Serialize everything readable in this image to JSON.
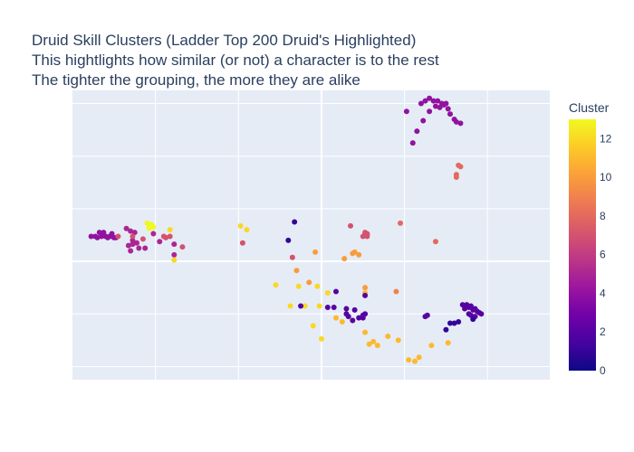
{
  "chart_data": {
    "type": "scatter",
    "title_lines": [
      "Druid Skill Clusters (Ladder Top 200 Druid's Highlighted)",
      "This hightlights how similar (or not) a character is to the rest",
      "The tighter the grouping, the more they are alike"
    ],
    "xlabel": "",
    "ylabel": "",
    "xlim": [
      -6,
      5.5
    ],
    "ylim": [
      -4.5,
      6.5
    ],
    "x_gridlines": [
      -4,
      -2,
      0,
      2,
      4
    ],
    "y_gridlines": [
      -4,
      -2,
      0,
      2,
      4,
      6
    ],
    "show_tick_labels": false,
    "colorbar": {
      "title": "Cluster",
      "range": [
        0,
        13
      ],
      "ticks": [
        0,
        2,
        4,
        6,
        8,
        10,
        12
      ],
      "colorscale": [
        "#0d0887",
        "#46039f",
        "#7201a8",
        "#9c179e",
        "#bd3786",
        "#d8576b",
        "#ed7953",
        "#fb9f3a",
        "#fdca26",
        "#f0f921"
      ]
    },
    "points": [
      {
        "x": 2.6,
        "y": 6.2,
        "c": 4
      },
      {
        "x": 2.5,
        "y": 6.1,
        "c": 4
      },
      {
        "x": 2.7,
        "y": 6.1,
        "c": 4
      },
      {
        "x": 2.8,
        "y": 6.1,
        "c": 4
      },
      {
        "x": 2.4,
        "y": 6.0,
        "c": 4
      },
      {
        "x": 2.9,
        "y": 6.0,
        "c": 4
      },
      {
        "x": 3.0,
        "y": 6.0,
        "c": 4
      },
      {
        "x": 2.75,
        "y": 5.9,
        "c": 4
      },
      {
        "x": 2.85,
        "y": 5.85,
        "c": 4
      },
      {
        "x": 3.05,
        "y": 5.8,
        "c": 4
      },
      {
        "x": 2.6,
        "y": 5.7,
        "c": 4
      },
      {
        "x": 3.1,
        "y": 5.6,
        "c": 4
      },
      {
        "x": 3.2,
        "y": 5.4,
        "c": 4
      },
      {
        "x": 3.25,
        "y": 5.3,
        "c": 4
      },
      {
        "x": 3.35,
        "y": 5.25,
        "c": 4
      },
      {
        "x": 2.45,
        "y": 5.35,
        "c": 4
      },
      {
        "x": 2.05,
        "y": 5.7,
        "c": 4
      },
      {
        "x": 2.3,
        "y": 4.95,
        "c": 4
      },
      {
        "x": 2.2,
        "y": 4.5,
        "c": 4
      },
      {
        "x": 2.95,
        "y": 5.95,
        "c": 4
      },
      {
        "x": 3.3,
        "y": 3.65,
        "c": 8
      },
      {
        "x": 3.35,
        "y": 3.6,
        "c": 8
      },
      {
        "x": 3.25,
        "y": 3.3,
        "c": 8
      },
      {
        "x": 3.25,
        "y": 3.2,
        "c": 8
      },
      {
        "x": -5.55,
        "y": 0.95,
        "c": 4
      },
      {
        "x": -5.45,
        "y": 0.95,
        "c": 4
      },
      {
        "x": -5.35,
        "y": 1.1,
        "c": 4
      },
      {
        "x": -5.3,
        "y": 0.95,
        "c": 4
      },
      {
        "x": -5.25,
        "y": 1.1,
        "c": 4
      },
      {
        "x": -5.2,
        "y": 0.95,
        "c": 4
      },
      {
        "x": -5.1,
        "y": 0.95,
        "c": 4
      },
      {
        "x": -5.05,
        "y": 1.05,
        "c": 4
      },
      {
        "x": -5.0,
        "y": 0.9,
        "c": 4
      },
      {
        "x": -5.15,
        "y": 0.9,
        "c": 4
      },
      {
        "x": -5.4,
        "y": 0.9,
        "c": 4
      },
      {
        "x": -4.95,
        "y": 0.9,
        "c": 4
      },
      {
        "x": -4.7,
        "y": 1.25,
        "c": 5
      },
      {
        "x": -4.6,
        "y": 1.15,
        "c": 5
      },
      {
        "x": -4.5,
        "y": 1.1,
        "c": 5
      },
      {
        "x": -4.55,
        "y": 0.8,
        "c": 5
      },
      {
        "x": -4.45,
        "y": 0.7,
        "c": 5
      },
      {
        "x": -4.65,
        "y": 0.6,
        "c": 5
      },
      {
        "x": -4.55,
        "y": 0.65,
        "c": 5
      },
      {
        "x": -4.4,
        "y": 0.5,
        "c": 5
      },
      {
        "x": -4.25,
        "y": 0.5,
        "c": 5
      },
      {
        "x": -4.6,
        "y": 0.4,
        "c": 5
      },
      {
        "x": -4.3,
        "y": 0.85,
        "c": 7
      },
      {
        "x": -4.9,
        "y": 0.95,
        "c": 7
      },
      {
        "x": -4.55,
        "y": 0.95,
        "c": 7
      },
      {
        "x": -4.05,
        "y": 1.05,
        "c": 5
      },
      {
        "x": -3.9,
        "y": 0.75,
        "c": 5
      },
      {
        "x": -3.75,
        "y": 0.9,
        "c": 7
      },
      {
        "x": -3.8,
        "y": 0.95,
        "c": 7
      },
      {
        "x": -3.65,
        "y": 0.95,
        "c": 7
      },
      {
        "x": -3.55,
        "y": 0.65,
        "c": 5
      },
      {
        "x": -3.55,
        "y": 0.25,
        "c": 5
      },
      {
        "x": -3.35,
        "y": 0.55,
        "c": 7
      },
      {
        "x": -4.2,
        "y": 1.45,
        "c": 13
      },
      {
        "x": -4.15,
        "y": 1.35,
        "c": 13
      },
      {
        "x": -4.1,
        "y": 1.4,
        "c": 13
      },
      {
        "x": -4.05,
        "y": 1.3,
        "c": 13
      },
      {
        "x": -4.15,
        "y": 1.25,
        "c": 13
      },
      {
        "x": -3.65,
        "y": 1.2,
        "c": 12
      },
      {
        "x": -3.55,
        "y": 0.05,
        "c": 12
      },
      {
        "x": -1.95,
        "y": 1.35,
        "c": 12
      },
      {
        "x": -1.8,
        "y": 1.2,
        "c": 12
      },
      {
        "x": -0.65,
        "y": 1.5,
        "c": 1
      },
      {
        "x": -0.8,
        "y": 0.8,
        "c": 1
      },
      {
        "x": -1.9,
        "y": 0.7,
        "c": 7
      },
      {
        "x": -0.7,
        "y": 0.15,
        "c": 7
      },
      {
        "x": 0.7,
        "y": 1.35,
        "c": 7
      },
      {
        "x": 1.05,
        "y": 1.1,
        "c": 7
      },
      {
        "x": 1.1,
        "y": 1.0,
        "c": 7
      },
      {
        "x": 1.1,
        "y": 1.05,
        "c": 7
      },
      {
        "x": 1.1,
        "y": 0.95,
        "c": 7
      },
      {
        "x": 1.0,
        "y": 0.95,
        "c": 7
      },
      {
        "x": 1.9,
        "y": 1.45,
        "c": 8
      },
      {
        "x": 2.75,
        "y": 0.75,
        "c": 8
      },
      {
        "x": 0.8,
        "y": 0.35,
        "c": 10
      },
      {
        "x": 0.75,
        "y": 0.3,
        "c": 10
      },
      {
        "x": 0.9,
        "y": 0.25,
        "c": 10
      },
      {
        "x": 0.55,
        "y": 0.1,
        "c": 10
      },
      {
        "x": -0.15,
        "y": 0.35,
        "c": 10
      },
      {
        "x": -0.6,
        "y": -0.35,
        "c": 10
      },
      {
        "x": -0.3,
        "y": -0.8,
        "c": 10
      },
      {
        "x": 1.05,
        "y": -1.0,
        "c": 10
      },
      {
        "x": 1.8,
        "y": -1.15,
        "c": 9
      },
      {
        "x": -1.1,
        "y": -0.9,
        "c": 12
      },
      {
        "x": -0.75,
        "y": -1.7,
        "c": 12
      },
      {
        "x": -0.4,
        "y": -1.7,
        "c": 12
      },
      {
        "x": -0.1,
        "y": -0.95,
        "c": 12
      },
      {
        "x": 0.15,
        "y": -1.2,
        "c": 12
      },
      {
        "x": -0.55,
        "y": -0.95,
        "c": 12
      },
      {
        "x": -0.2,
        "y": -2.45,
        "c": 12
      },
      {
        "x": 0.0,
        "y": -2.95,
        "c": 12
      },
      {
        "x": -0.05,
        "y": -1.7,
        "c": 12
      },
      {
        "x": 0.35,
        "y": -2.15,
        "c": 11
      },
      {
        "x": 0.5,
        "y": -2.3,
        "c": 11
      },
      {
        "x": 1.05,
        "y": -2.7,
        "c": 11
      },
      {
        "x": 1.15,
        "y": -3.15,
        "c": 11
      },
      {
        "x": 1.25,
        "y": -3.05,
        "c": 11
      },
      {
        "x": 1.35,
        "y": -3.2,
        "c": 11
      },
      {
        "x": 1.6,
        "y": -2.85,
        "c": 11
      },
      {
        "x": 1.85,
        "y": -3.0,
        "c": 11
      },
      {
        "x": 2.1,
        "y": -3.75,
        "c": 11
      },
      {
        "x": 2.25,
        "y": -3.8,
        "c": 11
      },
      {
        "x": 2.35,
        "y": -3.65,
        "c": 11
      },
      {
        "x": 2.65,
        "y": -3.2,
        "c": 11
      },
      {
        "x": 3.05,
        "y": -3.1,
        "c": 11
      },
      {
        "x": 1.05,
        "y": -1.2,
        "c": 11
      },
      {
        "x": 0.35,
        "y": -1.15,
        "c": 2
      },
      {
        "x": -0.5,
        "y": -1.7,
        "c": 2
      },
      {
        "x": 0.15,
        "y": -1.75,
        "c": 2
      },
      {
        "x": 0.3,
        "y": -1.75,
        "c": 2
      },
      {
        "x": 0.6,
        "y": -1.8,
        "c": 2
      },
      {
        "x": 0.6,
        "y": -2.0,
        "c": 2
      },
      {
        "x": 0.65,
        "y": -2.1,
        "c": 2
      },
      {
        "x": 0.75,
        "y": -2.25,
        "c": 2
      },
      {
        "x": 0.8,
        "y": -1.85,
        "c": 2
      },
      {
        "x": 0.9,
        "y": -2.15,
        "c": 2
      },
      {
        "x": 1.0,
        "y": -2.05,
        "c": 2
      },
      {
        "x": 1.05,
        "y": -2.0,
        "c": 2
      },
      {
        "x": 1.0,
        "y": -2.15,
        "c": 2
      },
      {
        "x": 1.05,
        "y": -1.3,
        "c": 2
      },
      {
        "x": 2.5,
        "y": -2.1,
        "c": 2
      },
      {
        "x": 2.55,
        "y": -2.05,
        "c": 2
      },
      {
        "x": 3.4,
        "y": -1.65,
        "c": 2
      },
      {
        "x": 3.45,
        "y": -1.7,
        "c": 2
      },
      {
        "x": 3.5,
        "y": -1.65,
        "c": 2
      },
      {
        "x": 3.55,
        "y": -1.75,
        "c": 2
      },
      {
        "x": 3.6,
        "y": -1.7,
        "c": 2
      },
      {
        "x": 3.65,
        "y": -1.85,
        "c": 2
      },
      {
        "x": 3.7,
        "y": -1.8,
        "c": 2
      },
      {
        "x": 3.75,
        "y": -1.9,
        "c": 2
      },
      {
        "x": 3.8,
        "y": -1.95,
        "c": 2
      },
      {
        "x": 3.85,
        "y": -2.0,
        "c": 2
      },
      {
        "x": 3.45,
        "y": -1.8,
        "c": 2
      },
      {
        "x": 3.55,
        "y": -2.0,
        "c": 2
      },
      {
        "x": 3.6,
        "y": -2.05,
        "c": 2
      },
      {
        "x": 3.7,
        "y": -2.1,
        "c": 2
      },
      {
        "x": 3.65,
        "y": -2.2,
        "c": 1
      },
      {
        "x": 3.3,
        "y": -2.3,
        "c": 1
      },
      {
        "x": 3.2,
        "y": -2.35,
        "c": 1
      },
      {
        "x": 3.1,
        "y": -2.35,
        "c": 1
      },
      {
        "x": 3.0,
        "y": -2.6,
        "c": 1
      }
    ]
  }
}
